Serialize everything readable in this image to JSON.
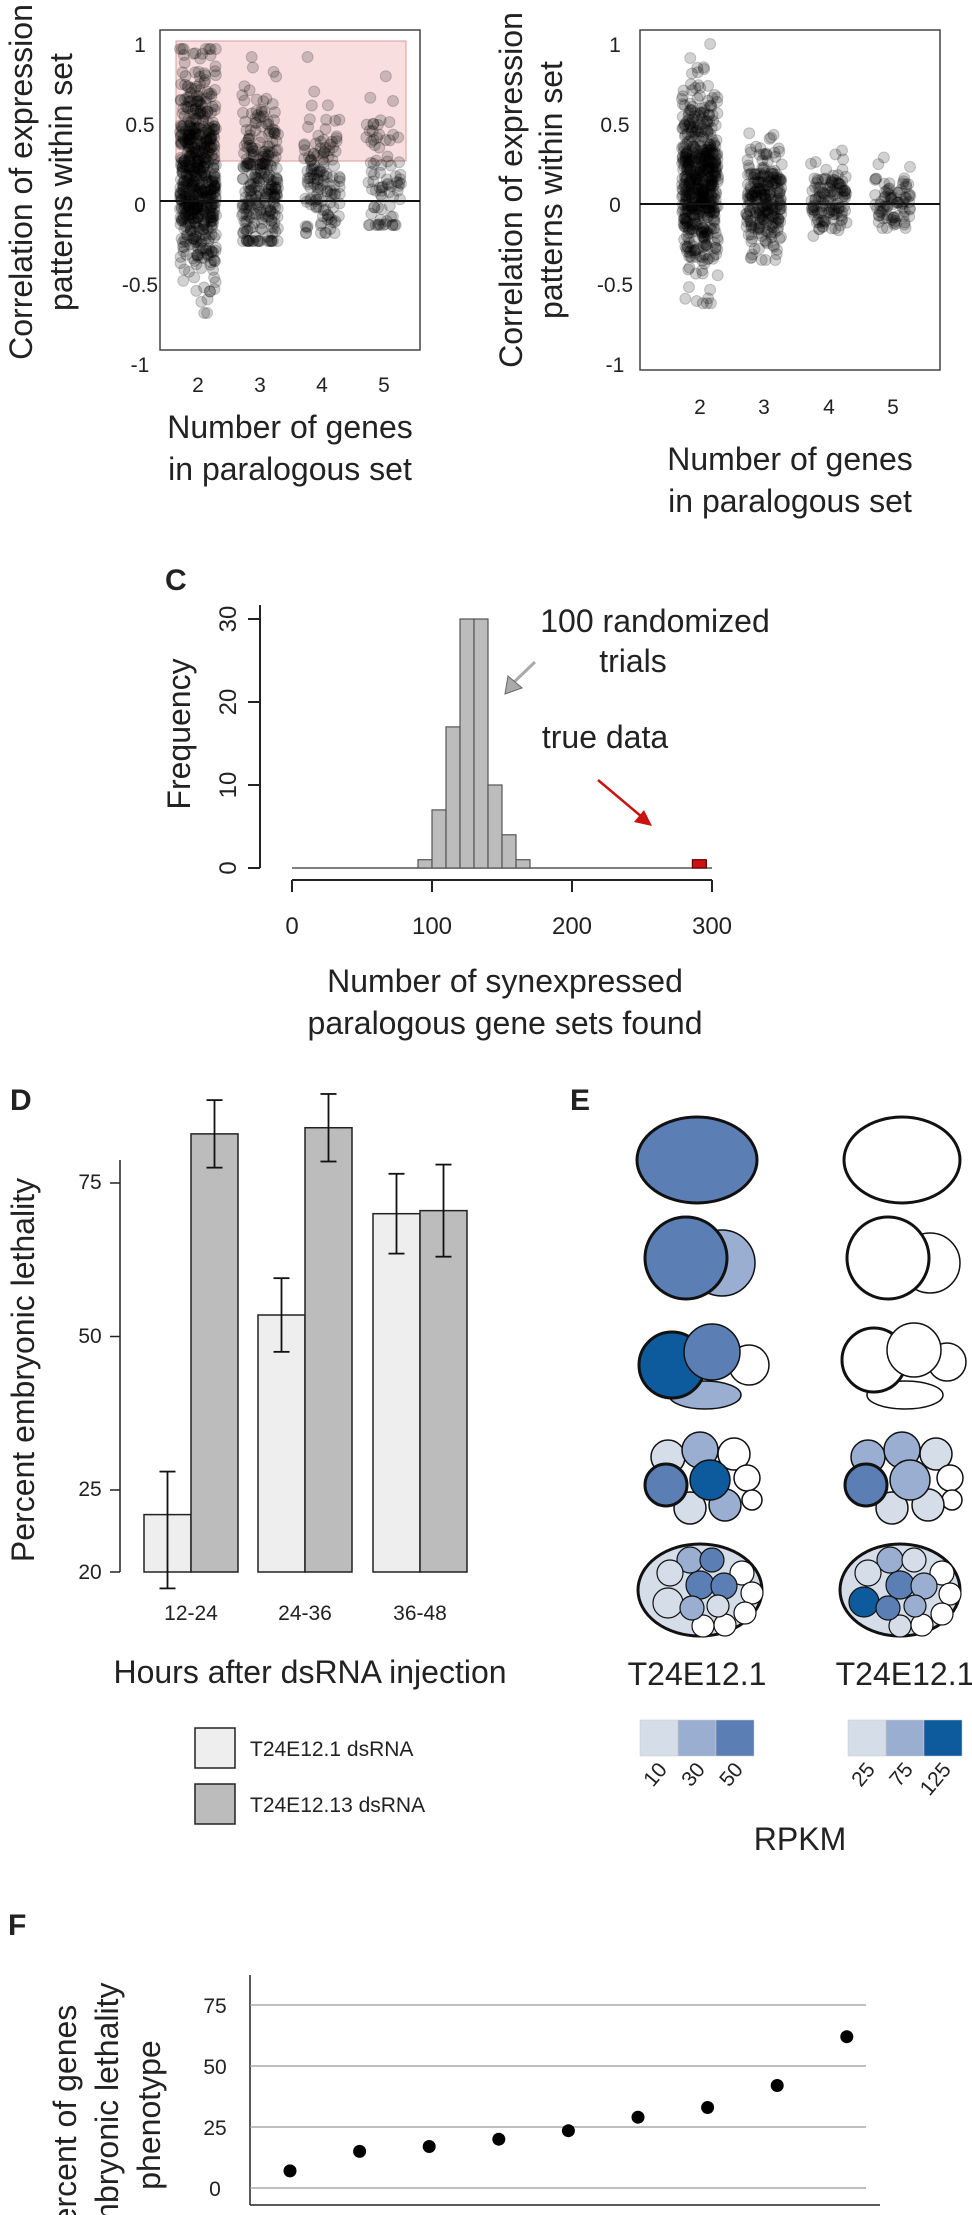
{
  "colors": {
    "point": "#000000",
    "highlight": "#f8dede",
    "bar_light": "#eeeeee",
    "bar_dark": "#bcbcbc",
    "hist_true": "#cc1111",
    "arrow_gray": "#aaaaaa",
    "arrow_red": "#cc1111",
    "blue_scale": [
      "#d5dde9",
      "#9aaed1",
      "#5b7fb5",
      "#0d5a9c"
    ]
  },
  "chart_data": [
    {
      "id": "A",
      "type": "scatter",
      "ylabel_line1": "Correlation of expression",
      "ylabel_line2": "patterns within set",
      "xlabel_line1": "Number of genes",
      "xlabel_line2": "in paralogous set",
      "x_ticks": [
        "2",
        "3",
        "4",
        "5"
      ],
      "y_ticks": [
        "1",
        "0.5",
        "0",
        "-0.5",
        "-1"
      ],
      "ylim": [
        -1,
        1
      ],
      "highlight_band": [
        0.25,
        1.0
      ],
      "groups": [
        {
          "x": "2",
          "n": 600,
          "mean": 0.2,
          "sd": 0.33,
          "min": -0.7,
          "max": 0.95
        },
        {
          "x": "3",
          "n": 260,
          "mean": 0.15,
          "sd": 0.28,
          "min": -0.25,
          "max": 0.9
        },
        {
          "x": "4",
          "n": 130,
          "mean": 0.12,
          "sd": 0.22,
          "min": -0.2,
          "max": 0.9
        },
        {
          "x": "5",
          "n": 80,
          "mean": 0.1,
          "sd": 0.22,
          "min": -0.15,
          "max": 0.78
        }
      ]
    },
    {
      "id": "B",
      "type": "scatter",
      "ylabel_line1": "Correlation of expression",
      "ylabel_line2": "patterns within set",
      "xlabel_line1": "Number of genes",
      "xlabel_line2": "in paralogous set",
      "x_ticks": [
        "2",
        "3",
        "4",
        "5"
      ],
      "y_ticks": [
        "1",
        "0.5",
        "0",
        "-0.5",
        "-1"
      ],
      "ylim": [
        -1,
        1
      ],
      "groups": [
        {
          "x": "2",
          "n": 550,
          "mean": 0.12,
          "sd": 0.28,
          "min": -0.62,
          "max": 1.0
        },
        {
          "x": "3",
          "n": 240,
          "mean": 0.05,
          "sd": 0.17,
          "min": -0.35,
          "max": 0.7
        },
        {
          "x": "4",
          "n": 120,
          "mean": 0.03,
          "sd": 0.12,
          "min": -0.2,
          "max": 0.5
        },
        {
          "x": "5",
          "n": 80,
          "mean": 0.02,
          "sd": 0.1,
          "min": -0.15,
          "max": 0.4
        }
      ]
    },
    {
      "id": "C",
      "type": "bar",
      "panel_label": "C",
      "ylabel": "Frequency",
      "xlabel_line1": "Number of synexpressed",
      "xlabel_line2": "paralogous gene sets found",
      "x_ticks": [
        "0",
        "100",
        "200",
        "300"
      ],
      "y_ticks": [
        "0",
        "10",
        "20",
        "30"
      ],
      "xlim": [
        0,
        300
      ],
      "ylim": [
        0,
        30
      ],
      "bins": [
        {
          "x0": 90,
          "x1": 100,
          "count": 1
        },
        {
          "x0": 100,
          "x1": 110,
          "count": 7
        },
        {
          "x0": 110,
          "x1": 120,
          "count": 17
        },
        {
          "x0": 120,
          "x1": 130,
          "count": 30
        },
        {
          "x0": 130,
          "x1": 140,
          "count": 30
        },
        {
          "x0": 140,
          "x1": 150,
          "count": 10
        },
        {
          "x0": 150,
          "x1": 160,
          "count": 4
        },
        {
          "x0": 160,
          "x1": 170,
          "count": 1
        }
      ],
      "true_bin": {
        "x0": 286,
        "x1": 296,
        "count": 1
      },
      "annotation_random_line1": "100 randomized",
      "annotation_random_line2": "trials",
      "annotation_true": "true data"
    },
    {
      "id": "D",
      "type": "bar",
      "panel_label": "D",
      "ylabel": "Percent embryonic lethality",
      "xlabel": "Hours after dsRNA injection",
      "categories": [
        "12-24",
        "24-36",
        "36-48"
      ],
      "y_ticks": [
        "20",
        "25",
        "50",
        "75"
      ],
      "series": [
        {
          "name": "T24E12.1 dsRNA",
          "values": [
            23.5,
            53.5,
            70
          ],
          "errors": [
            4.5,
            6,
            6.5
          ]
        },
        {
          "name": "T24E12.13 dsRNA",
          "values": [
            83,
            84,
            70.5
          ],
          "errors": [
            5.5,
            5.5,
            7.5
          ]
        }
      ]
    },
    {
      "id": "E",
      "type": "heatmap",
      "panel_label": "E",
      "left_gene": "T24E12.1",
      "right_gene": "T24E12.1",
      "left_scale": [
        "10",
        "30",
        "50"
      ],
      "right_scale": [
        "25",
        "75",
        "125"
      ],
      "scale_title": "RPKM"
    },
    {
      "id": "F",
      "type": "scatter",
      "panel_label": "F",
      "ylabel_line1": "ercent of genes",
      "ylabel_line2": "embryonic lethality",
      "ylabel_line3": "phenotype",
      "y_ticks": [
        "0",
        "25",
        "50",
        "75"
      ],
      "ylim": [
        0,
        75
      ],
      "values": [
        7,
        15,
        17,
        20,
        23.5,
        29,
        33,
        42,
        62
      ]
    }
  ]
}
